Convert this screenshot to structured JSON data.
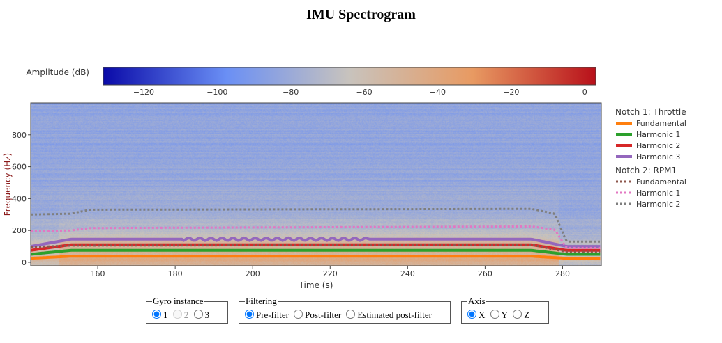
{
  "title": "IMU Spectrogram",
  "chart_data": {
    "type": "heatmap",
    "title": "IMU Spectrogram",
    "xlabel": "Time (s)",
    "ylabel": "Frequency (Hz)",
    "xlim": [
      142.7,
      290
    ],
    "ylim": [
      -22,
      1000
    ],
    "xticks": [
      160,
      180,
      200,
      220,
      240,
      260,
      280
    ],
    "yticks": [
      0,
      200,
      400,
      600,
      800
    ],
    "colorbar": {
      "label": "Amplitude (dB)",
      "range": [
        -131,
        3
      ],
      "ticks": [
        -120,
        -100,
        -80,
        -60,
        -40,
        -20,
        0
      ],
      "colors": [
        "#0a0aa8",
        "#6a8ff5",
        "#c8c3bd",
        "#e89a62",
        "#b8101a"
      ]
    },
    "legend": {
      "placement": "right",
      "groups": [
        {
          "title": "Notch 1: Throttle",
          "style": "solid",
          "series": [
            {
              "name": "Fundamental",
              "color": "#ff7f0e",
              "x": [
                142.7,
                153,
                272,
                281,
                290
              ],
              "y": [
                25,
                38,
                38,
                25,
                25
              ]
            },
            {
              "name": "Harmonic 1",
              "color": "#2ca02c",
              "x": [
                142.7,
                153,
                272,
                281,
                290
              ],
              "y": [
                50,
                75,
                75,
                50,
                50
              ]
            },
            {
              "name": "Harmonic 2",
              "color": "#d62728",
              "x": [
                142.7,
                153,
                272,
                281,
                290
              ],
              "y": [
                75,
                110,
                110,
                75,
                75
              ]
            },
            {
              "name": "Harmonic 3",
              "color": "#9467bd",
              "x": [
                142.7,
                153,
                272,
                281,
                290
              ],
              "y": [
                100,
                145,
                145,
                100,
                100
              ]
            }
          ]
        },
        {
          "title": "Notch 2: RPM1",
          "style": "dotted",
          "series": [
            {
              "name": "Fundamental",
              "color": "#8c564b",
              "x": [
                142.7,
                153,
                272,
                281,
                290
              ],
              "y": [
                95,
                105,
                110,
                65,
                65
              ]
            },
            {
              "name": "Harmonic 1",
              "color": "#e377c2",
              "x": [
                142.7,
                153,
                158,
                272,
                278,
                281,
                290
              ],
              "y": [
                195,
                200,
                215,
                225,
                205,
                90,
                90
              ]
            },
            {
              "name": "Harmonic 2",
              "color": "#7f7f7f",
              "x": [
                142.7,
                153,
                158,
                272,
                278,
                281,
                290
              ],
              "y": [
                300,
                305,
                330,
                335,
                305,
                130,
                130
              ]
            }
          ]
        }
      ]
    }
  },
  "controls": {
    "gyro": {
      "legend": "Gyro instance",
      "options": [
        "1",
        "2",
        "3"
      ],
      "selected": "1"
    },
    "filtering": {
      "legend": "Filtering",
      "options": [
        "Pre-filter",
        "Post-filter",
        "Estimated post-filter"
      ],
      "selected": "Pre-filter"
    },
    "axis": {
      "legend": "Axis",
      "options": [
        "X",
        "Y",
        "Z"
      ],
      "selected": "X"
    }
  }
}
